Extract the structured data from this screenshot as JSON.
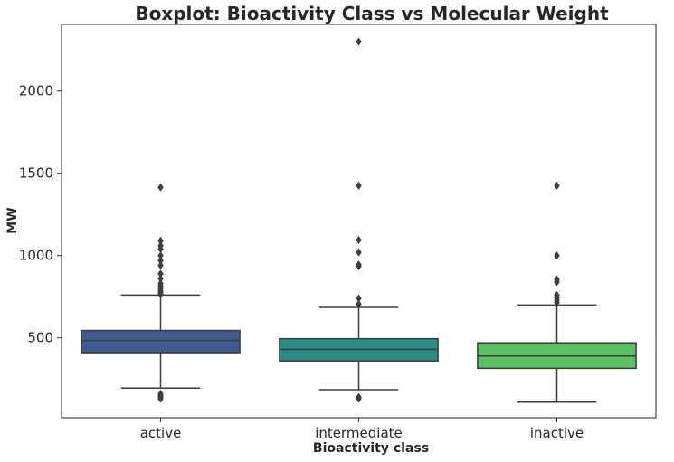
{
  "chart_data": {
    "type": "boxplot",
    "title": "Boxplot: Bioactivity Class vs Molecular Weight",
    "xlabel": "Bioactivity class",
    "ylabel": "MW",
    "ylim": [
      15,
      2405
    ],
    "yticks": [
      500,
      1000,
      1500,
      2000
    ],
    "categories": [
      "active",
      "intermediate",
      "inactive"
    ],
    "colors": [
      "#3e5a8e",
      "#2a8c84",
      "#5ac063"
    ],
    "grid": false,
    "boxes": [
      {
        "category": "active",
        "whisker_low": 195,
        "q1": 410,
        "median": 485,
        "q3": 545,
        "whisker_high": 760,
        "outliers": [
          130,
          140,
          150,
          160,
          765,
          775,
          785,
          800,
          815,
          830,
          860,
          890,
          940,
          970,
          1000,
          1040,
          1060,
          1090,
          1415
        ]
      },
      {
        "category": "intermediate",
        "whisker_low": 185,
        "q1": 360,
        "median": 430,
        "q3": 495,
        "whisker_high": 685,
        "outliers": [
          130,
          140,
          705,
          740,
          935,
          945,
          1020,
          1095,
          1425,
          2300
        ]
      },
      {
        "category": "inactive",
        "whisker_low": 110,
        "q1": 315,
        "median": 390,
        "q3": 470,
        "whisker_high": 700,
        "outliers": [
          715,
          730,
          745,
          760,
          840,
          855,
          1000,
          1425
        ]
      }
    ]
  }
}
